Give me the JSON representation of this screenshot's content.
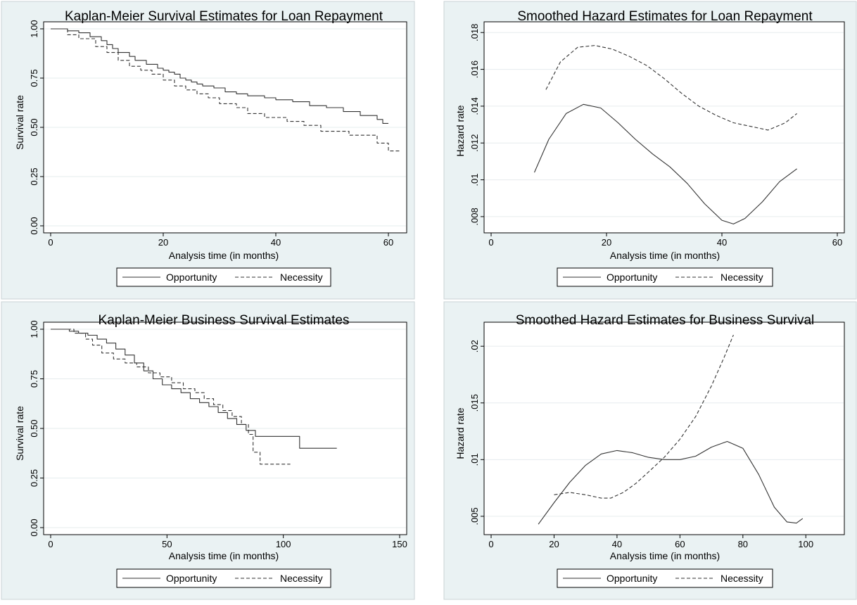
{
  "chart_data": [
    {
      "type": "line",
      "title": "Kaplan-Meier Survival Estimates for Loan Repayment",
      "xlabel": "Analysis time (in months)",
      "ylabel": "Survival rate",
      "xlim": [
        0,
        62
      ],
      "ylim": [
        0,
        1
      ],
      "xticks": [
        0,
        20,
        40,
        60
      ],
      "xtick_labels": [
        "0",
        "20",
        "40",
        "60"
      ],
      "yticks": [
        0,
        0.25,
        0.5,
        0.75,
        1
      ],
      "ytick_labels": [
        "0.00",
        "0.25",
        "0.50",
        "0.75",
        "1.00"
      ],
      "grid": true,
      "legend_position": "bottom",
      "series": [
        {
          "name": "Opportunity",
          "style": "solid",
          "step": true,
          "x": [
            0,
            3,
            5,
            7,
            9,
            10,
            11,
            12,
            14,
            15,
            17,
            19,
            20,
            21,
            22,
            23,
            24,
            25,
            26,
            27,
            29,
            31,
            33,
            35,
            38,
            40,
            43,
            46,
            49,
            52,
            55,
            58,
            59,
            60
          ],
          "y": [
            1.0,
            0.99,
            0.98,
            0.96,
            0.94,
            0.92,
            0.9,
            0.88,
            0.86,
            0.84,
            0.82,
            0.8,
            0.79,
            0.78,
            0.77,
            0.75,
            0.74,
            0.73,
            0.72,
            0.71,
            0.7,
            0.68,
            0.67,
            0.66,
            0.65,
            0.64,
            0.63,
            0.61,
            0.6,
            0.58,
            0.56,
            0.54,
            0.52,
            0.52
          ]
        },
        {
          "name": "Necessity",
          "style": "dashed",
          "step": true,
          "x": [
            0,
            3,
            5,
            8,
            10,
            12,
            14,
            16,
            18,
            20,
            22,
            24,
            26,
            28,
            30,
            33,
            35,
            38,
            42,
            45,
            48,
            53,
            57,
            58,
            60,
            62
          ],
          "y": [
            1.0,
            0.97,
            0.95,
            0.91,
            0.88,
            0.84,
            0.81,
            0.79,
            0.77,
            0.74,
            0.71,
            0.69,
            0.67,
            0.65,
            0.62,
            0.6,
            0.57,
            0.55,
            0.53,
            0.51,
            0.48,
            0.46,
            0.46,
            0.42,
            0.38,
            0.38
          ]
        }
      ]
    },
    {
      "type": "line",
      "title": "Smoothed Hazard Estimates for Loan Repayment",
      "xlabel": "Analysis time (in months)",
      "ylabel": "Hazard rate",
      "xlim": [
        0,
        60
      ],
      "ylim": [
        0.0075,
        0.0182
      ],
      "xticks": [
        0,
        20,
        40,
        60
      ],
      "xtick_labels": [
        "0",
        "20",
        "40",
        "60"
      ],
      "yticks": [
        0.008,
        0.01,
        0.012,
        0.014,
        0.016,
        0.018
      ],
      "ytick_labels": [
        ".008",
        ".01",
        ".012",
        ".014",
        ".016",
        ".018"
      ],
      "grid": true,
      "legend_position": "bottom",
      "series": [
        {
          "name": "Opportunity",
          "style": "solid",
          "step": false,
          "x": [
            7.5,
            10,
            13,
            16,
            19,
            22,
            25,
            28,
            31,
            34,
            37,
            40,
            42,
            44,
            47,
            50,
            53
          ],
          "y": [
            0.0104,
            0.0122,
            0.0136,
            0.0141,
            0.0139,
            0.0131,
            0.0122,
            0.0114,
            0.0107,
            0.0098,
            0.0087,
            0.0078,
            0.0076,
            0.0079,
            0.0088,
            0.0099,
            0.0106
          ]
        },
        {
          "name": "Necessity",
          "style": "dashed",
          "step": false,
          "x": [
            9.5,
            12,
            15,
            18,
            21,
            24,
            27,
            30,
            33,
            36,
            39,
            42,
            45,
            48,
            51,
            53
          ],
          "y": [
            0.0149,
            0.0164,
            0.0172,
            0.0173,
            0.0171,
            0.0167,
            0.0162,
            0.0155,
            0.0147,
            0.014,
            0.0135,
            0.0131,
            0.0129,
            0.0127,
            0.0131,
            0.0136
          ]
        }
      ]
    },
    {
      "type": "line",
      "title": "Kaplan-Meier Business Survival Estimates",
      "xlabel": "Analysis time (in months)",
      "ylabel": "Survival rate",
      "xlim": [
        0,
        150
      ],
      "ylim": [
        0,
        1
      ],
      "xticks": [
        0,
        50,
        100,
        150
      ],
      "xtick_labels": [
        "0",
        "50",
        "100",
        "150"
      ],
      "yticks": [
        0,
        0.25,
        0.5,
        0.75,
        1
      ],
      "ytick_labels": [
        "0.00",
        "0.25",
        "0.50",
        "0.75",
        "1.00"
      ],
      "grid": true,
      "legend_position": "bottom",
      "series": [
        {
          "name": "Opportunity",
          "style": "solid",
          "step": true,
          "x": [
            0,
            8,
            12,
            16,
            20,
            24,
            28,
            32,
            36,
            40,
            44,
            48,
            52,
            56,
            60,
            64,
            68,
            72,
            76,
            80,
            84,
            88,
            107,
            123
          ],
          "y": [
            1.0,
            0.99,
            0.98,
            0.97,
            0.95,
            0.93,
            0.9,
            0.87,
            0.83,
            0.79,
            0.75,
            0.72,
            0.7,
            0.68,
            0.65,
            0.63,
            0.61,
            0.58,
            0.55,
            0.52,
            0.49,
            0.46,
            0.4,
            0.4
          ]
        },
        {
          "name": "Necessity",
          "style": "dashed",
          "step": true,
          "x": [
            0,
            10,
            15,
            18,
            22,
            27,
            32,
            37,
            42,
            47,
            52,
            57,
            62,
            66,
            70,
            74,
            78,
            82,
            85,
            87,
            90,
            103
          ],
          "y": [
            1.0,
            0.98,
            0.95,
            0.92,
            0.88,
            0.85,
            0.83,
            0.81,
            0.78,
            0.76,
            0.73,
            0.7,
            0.68,
            0.65,
            0.62,
            0.59,
            0.56,
            0.52,
            0.47,
            0.38,
            0.32,
            0.32
          ]
        }
      ]
    },
    {
      "type": "line",
      "title": "Smoothed Hazard Estimates for Business Survival",
      "xlabel": "Analysis time (in months)",
      "ylabel": "Hazard rate",
      "xlim": [
        0,
        110
      ],
      "ylim": [
        0.004,
        0.0215
      ],
      "xticks": [
        0,
        20,
        40,
        60,
        80,
        100
      ],
      "xtick_labels": [
        "0",
        "20",
        "40",
        "60",
        "80",
        "100"
      ],
      "yticks": [
        0.005,
        0.01,
        0.015,
        0.02
      ],
      "ytick_labels": [
        ".005",
        ".01",
        ".015",
        ".02"
      ],
      "grid": true,
      "legend_position": "bottom",
      "series": [
        {
          "name": "Opportunity",
          "style": "solid",
          "step": false,
          "x": [
            15,
            20,
            25,
            30,
            35,
            40,
            45,
            50,
            55,
            60,
            65,
            70,
            75,
            80,
            85,
            90,
            94,
            97,
            99
          ],
          "y": [
            0.0043,
            0.0062,
            0.008,
            0.0095,
            0.0105,
            0.0108,
            0.0106,
            0.0102,
            0.01,
            0.01,
            0.0103,
            0.0111,
            0.0116,
            0.011,
            0.0087,
            0.0058,
            0.0045,
            0.0044,
            0.0048
          ]
        },
        {
          "name": "Necessity",
          "style": "dashed",
          "step": false,
          "x": [
            20,
            25,
            30,
            35,
            38,
            42,
            46,
            50,
            55,
            60,
            65,
            70,
            74,
            77
          ],
          "y": [
            0.0069,
            0.0071,
            0.0069,
            0.0066,
            0.0066,
            0.0071,
            0.0079,
            0.0089,
            0.0102,
            0.0118,
            0.0138,
            0.0165,
            0.019,
            0.021
          ]
        }
      ]
    }
  ]
}
